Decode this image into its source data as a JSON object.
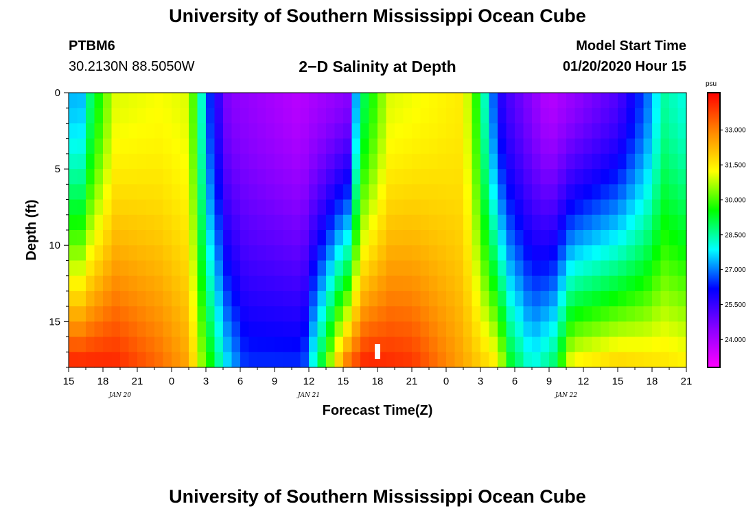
{
  "header": {
    "title": "University of Southern Mississippi Ocean Cube",
    "station": "PTBM6",
    "coordinates": "30.2130N 88.5050W",
    "model_start_label": "Model Start Time",
    "model_start_value": "01/20/2020 Hour 15"
  },
  "footer": {
    "title": "University of Southern Mississippi Ocean Cube"
  },
  "chart_data": {
    "type": "heatmap",
    "title": "2−D Salinity at Depth",
    "xlabel": "Forecast Time(Z)",
    "ylabel": "Depth (ft)",
    "x_tick_labels": [
      "15",
      "18",
      "21",
      "0",
      "3",
      "6",
      "9",
      "12",
      "15",
      "18",
      "21",
      "0",
      "3",
      "6",
      "9",
      "12",
      "15",
      "18",
      "21"
    ],
    "x_date_labels": [
      {
        "label": "JAN 20",
        "at_tick": 1.5
      },
      {
        "label": "JAN 21",
        "at_tick": 7
      },
      {
        "label": "JAN 22",
        "at_tick": 14.5
      }
    ],
    "x_range_hours": [
      0,
      54
    ],
    "current_time_hours": 27,
    "ylim_ft": [
      0,
      18
    ],
    "y_ticks": [
      0,
      5,
      10,
      15
    ],
    "colorbar": {
      "unit": "psu",
      "range": [
        22.8,
        34.6
      ],
      "tick_labels": [
        "33.000",
        "31.500",
        "30.000",
        "28.500",
        "27.000",
        "25.500",
        "24.000"
      ],
      "tick_values": [
        33.0,
        31.5,
        30.0,
        28.5,
        27.0,
        25.5,
        24.0
      ],
      "colors": [
        "#ff00ff",
        "#8800ff",
        "#0000ff",
        "#00ffff",
        "#00ff00",
        "#ffff00",
        "#ff8800",
        "#ff0000"
      ]
    },
    "salinity_model": {
      "surface_anchors_hours_psu": [
        [
          0,
          27.5
        ],
        [
          1,
          27.2
        ],
        [
          2,
          29
        ],
        [
          4,
          31
        ],
        [
          8,
          31.2
        ],
        [
          10.5,
          31
        ],
        [
          11.3,
          29
        ],
        [
          12.3,
          26.5
        ],
        [
          14,
          24.5
        ],
        [
          20,
          23.8
        ],
        [
          24.5,
          24.5
        ],
        [
          25,
          27
        ],
        [
          25.8,
          29
        ],
        [
          28,
          31
        ],
        [
          34.5,
          31.5
        ],
        [
          35.8,
          29.5
        ],
        [
          37,
          27
        ],
        [
          38,
          25.5
        ],
        [
          42,
          23.8
        ],
        [
          48,
          25.2
        ],
        [
          50.5,
          26.8
        ],
        [
          52,
          28.5
        ],
        [
          54,
          28
        ]
      ],
      "bottom_anchors_hours_psu": [
        [
          0,
          34.3
        ],
        [
          4,
          34.2
        ],
        [
          8,
          33.3
        ],
        [
          10.5,
          32.5
        ],
        [
          11.3,
          31
        ],
        [
          12.5,
          29.5
        ],
        [
          13.5,
          28
        ],
        [
          15.5,
          26.5
        ],
        [
          18,
          26.5
        ],
        [
          20.5,
          26.5
        ],
        [
          21.3,
          28
        ],
        [
          22.5,
          30
        ],
        [
          23.5,
          32
        ],
        [
          24.5,
          33.5
        ],
        [
          26,
          34.3
        ],
        [
          30,
          34
        ],
        [
          36,
          32
        ],
        [
          37.5,
          31.5
        ],
        [
          38.5,
          29.5
        ],
        [
          40.5,
          28
        ],
        [
          42.5,
          29
        ],
        [
          44,
          31.5
        ],
        [
          48,
          32
        ],
        [
          54,
          31.5
        ]
      ],
      "depth_exponent": 1.5
    }
  }
}
